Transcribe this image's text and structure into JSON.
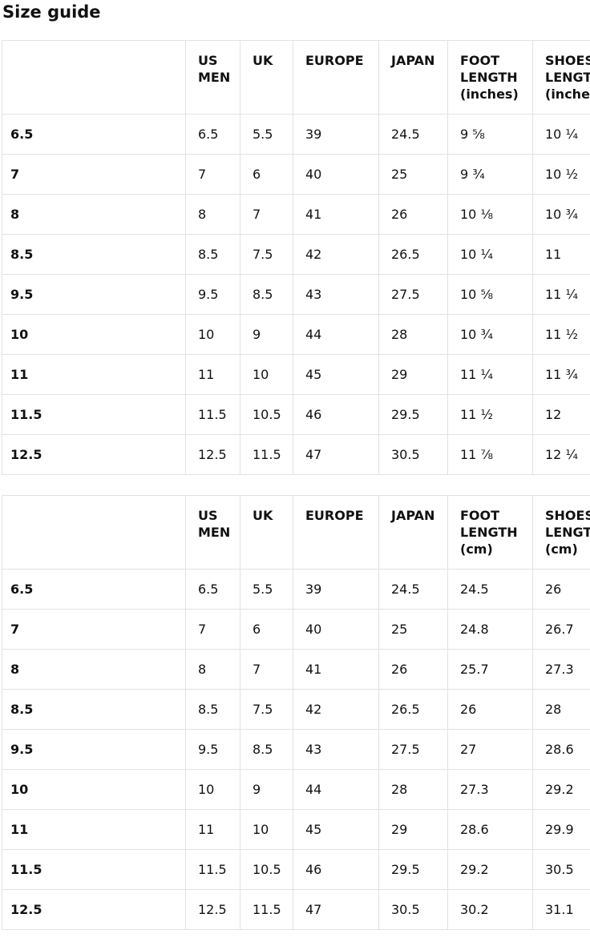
{
  "page": {
    "title": "Size guide"
  },
  "colors": {
    "background": "#ffffff",
    "text": "#111111",
    "border": "#e2e2e2"
  },
  "tables": [
    {
      "name": "size-guide-inches",
      "columns": [
        "",
        "US MEN",
        "UK",
        "EUROPE",
        "JAPAN",
        "FOOT LENGTH (inches)",
        "SHOES LENGTH (inches)"
      ],
      "rows": [
        [
          "6.5",
          "6.5",
          "5.5",
          "39",
          "24.5",
          "9 ⅝",
          "10 ¼"
        ],
        [
          "7",
          "7",
          "6",
          "40",
          "25",
          "9 ¾",
          "10 ½"
        ],
        [
          "8",
          "8",
          "7",
          "41",
          "26",
          "10 ⅛",
          "10 ¾"
        ],
        [
          "8.5",
          "8.5",
          "7.5",
          "42",
          "26.5",
          "10 ¼",
          "11"
        ],
        [
          "9.5",
          "9.5",
          "8.5",
          "43",
          "27.5",
          "10 ⅝",
          "11 ¼"
        ],
        [
          "10",
          "10",
          "9",
          "44",
          "28",
          "10 ¾",
          "11 ½"
        ],
        [
          "11",
          "11",
          "10",
          "45",
          "29",
          "11 ¼",
          "11 ¾"
        ],
        [
          "11.5",
          "11.5",
          "10.5",
          "46",
          "29.5",
          "11 ½",
          "12"
        ],
        [
          "12.5",
          "12.5",
          "11.5",
          "47",
          "30.5",
          "11 ⅞",
          "12 ¼"
        ]
      ]
    },
    {
      "name": "size-guide-cm",
      "columns": [
        "",
        "US MEN",
        "UK",
        "EUROPE",
        "JAPAN",
        "FOOT LENGTH (cm)",
        "SHOES LENGTH (cm)"
      ],
      "rows": [
        [
          "6.5",
          "6.5",
          "5.5",
          "39",
          "24.5",
          "24.5",
          "26"
        ],
        [
          "7",
          "7",
          "6",
          "40",
          "25",
          "24.8",
          "26.7"
        ],
        [
          "8",
          "8",
          "7",
          "41",
          "26",
          "25.7",
          "27.3"
        ],
        [
          "8.5",
          "8.5",
          "7.5",
          "42",
          "26.5",
          "26",
          "28"
        ],
        [
          "9.5",
          "9.5",
          "8.5",
          "43",
          "27.5",
          "27",
          "28.6"
        ],
        [
          "10",
          "10",
          "9",
          "44",
          "28",
          "27.3",
          "29.2"
        ],
        [
          "11",
          "11",
          "10",
          "45",
          "29",
          "28.6",
          "29.9"
        ],
        [
          "11.5",
          "11.5",
          "10.5",
          "46",
          "29.5",
          "29.2",
          "30.5"
        ],
        [
          "12.5",
          "12.5",
          "11.5",
          "47",
          "30.5",
          "30.2",
          "31.1"
        ]
      ]
    }
  ]
}
